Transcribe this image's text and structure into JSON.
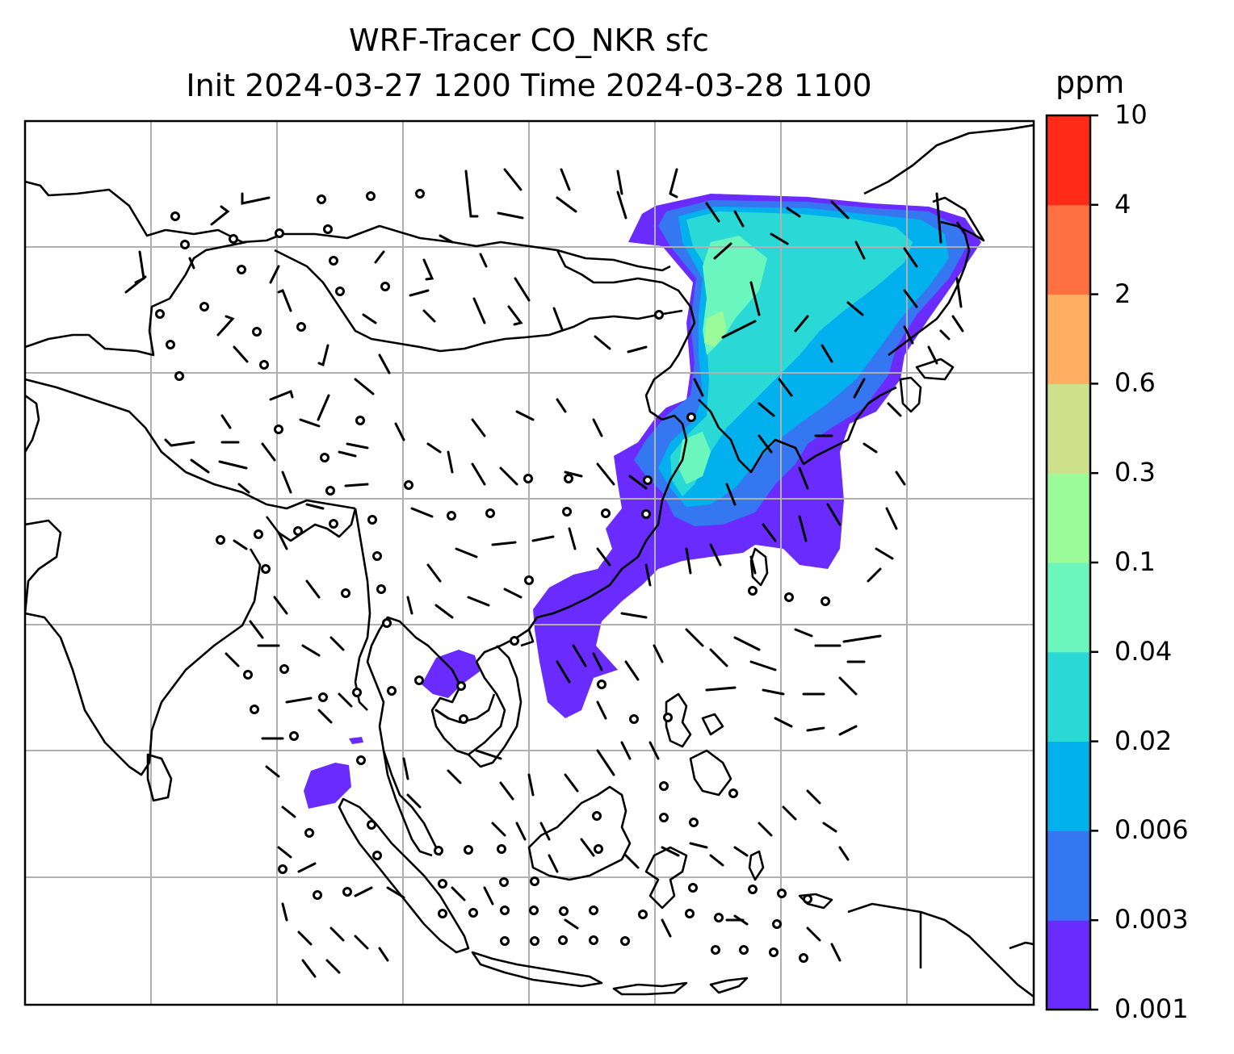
{
  "title": {
    "line1": "WRF-Tracer CO_NKR sfc",
    "line2": "Init 2024-03-27 1200 Time 2024-03-28 1100"
  },
  "colorbar": {
    "unit": "ppm",
    "levels": [
      "0.001",
      "0.003",
      "0.006",
      "0.02",
      "0.04",
      "0.1",
      "0.3",
      "0.6",
      "2",
      "4",
      "10"
    ],
    "colors": [
      "#6a2bff",
      "#3577f0",
      "#03b0ee",
      "#2ad9d6",
      "#6bf6bd",
      "#9cfb99",
      "#cfe08a",
      "#ffae62",
      "#ff7040",
      "#ff2a18"
    ]
  },
  "map": {
    "grid": true,
    "field": "CO_NKR tracer concentration, surface",
    "overlay": "wind barbs"
  }
}
